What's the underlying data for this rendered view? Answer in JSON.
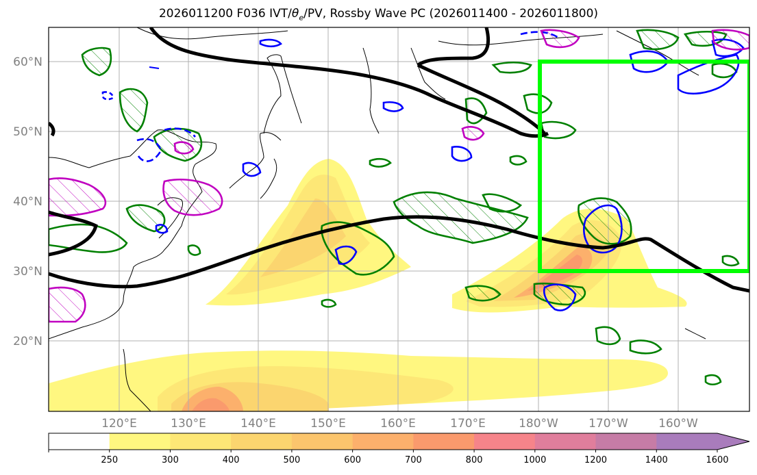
{
  "title": {
    "prefix": "2026011200 F036 IVT/",
    "theta": "θ",
    "theta_sub": "e",
    "suffix": "/PV, Rossby Wave PC (2026011400 - 2026011800)"
  },
  "lat_labels": [
    "60°N",
    "50°N",
    "40°N",
    "30°N",
    "20°N"
  ],
  "lon_labels": [
    "120°E",
    "130°E",
    "140°E",
    "150°E",
    "160°E",
    "170°E",
    "180°W",
    "170°W",
    "160°W"
  ],
  "colorbar": {
    "ticks": [
      "250",
      "300",
      "400",
      "500",
      "600",
      "700",
      "800",
      "1000",
      "1200",
      "1400",
      "1600"
    ],
    "colors": [
      "#ffffff",
      "#fff780",
      "#fde776",
      "#fbd56f",
      "#fbc56d",
      "#fcb06c",
      "#fa9a6d",
      "#f6848a",
      "#e07e9c",
      "#c67ca6",
      "#a97cbc",
      "#a97cbc"
    ]
  },
  "colors": {
    "box": "#00ff00",
    "contour_black": "#000000",
    "contour_green": "#008000",
    "contour_blue": "#0000ff",
    "contour_magenta": "#c000c0"
  }
}
